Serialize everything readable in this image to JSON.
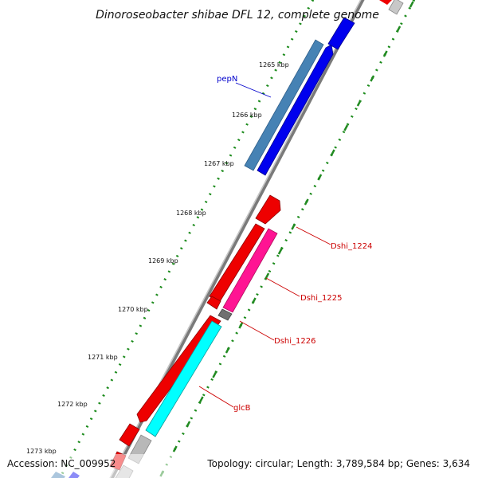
{
  "title": "Dinoroseobacter shibae DFL 12, complete genome",
  "footer": {
    "accession": "Accession: NC_009952",
    "summary": "Topology: circular; Length: 3,789,584 bp; Genes: 3,634"
  },
  "ticks": [
    {
      "label": "1265 kbp"
    },
    {
      "label": "1266 kbp"
    },
    {
      "label": "1267 kbp"
    },
    {
      "label": "1268 kbp"
    },
    {
      "label": "1269 kbp"
    },
    {
      "label": "1270 kbp"
    },
    {
      "label": "1271 kbp"
    },
    {
      "label": "1272 kbp"
    },
    {
      "label": "1273 kbp"
    }
  ],
  "gene_labels": [
    {
      "name": "pepN",
      "color": "#0000cc"
    },
    {
      "name": "Dshi_1224",
      "color": "#cc0000"
    },
    {
      "name": "Dshi_1225",
      "color": "#cc0000"
    },
    {
      "name": "Dshi_1226",
      "color": "#cc0000"
    },
    {
      "name": "glcB",
      "color": "#cc0000"
    }
  ],
  "colors": {
    "forward_cds": "#0000ee",
    "reverse_cds": "#ee0000",
    "steel_blue_feature": "#4682b4",
    "magenta_feature": "#ff1493",
    "cyan_feature": "#00ffff",
    "grey_feature": "#b0b0b0",
    "backbone": "#888888",
    "tick_green": "#228b22",
    "dot_green": "#1a8a1a"
  }
}
